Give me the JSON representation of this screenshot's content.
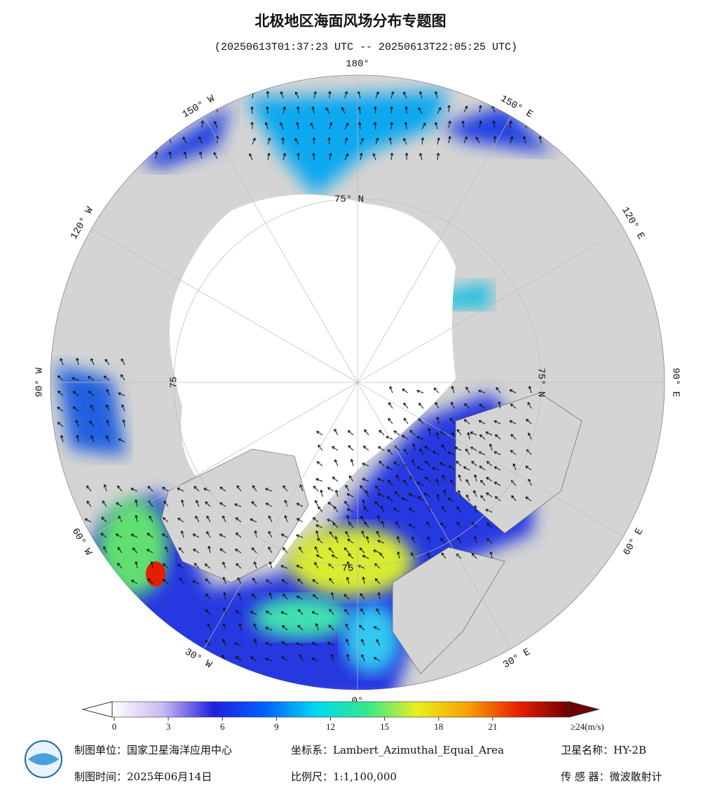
{
  "header": {
    "title": "北极地区海面风场分布专题图",
    "subtitle": "(20250613T01:37:23 UTC -- 20250613T22:05:25 UTC)"
  },
  "map": {
    "lon_labels": [
      "180°",
      "150° E",
      "120° E",
      "90° E",
      "60° E",
      "30° E",
      "0°",
      "30° W",
      "60° W",
      "90° W",
      "120° W",
      "150° W"
    ],
    "lat_labels": [
      "75° N",
      "75° N",
      "75",
      "75"
    ]
  },
  "colorbar": {
    "range": [
      0,
      24
    ],
    "ticks": [
      0,
      3,
      6,
      9,
      12,
      15,
      18,
      21
    ],
    "max_label": "≥24(m/s)",
    "colors": [
      "#ffffff",
      "#c8b8f0",
      "#2020e0",
      "#0060ff",
      "#00d8f0",
      "#30e890",
      "#e8f020",
      "#f8a000",
      "#e82000",
      "#700000"
    ]
  },
  "footer": {
    "unit": "制图单位：国家卫星海洋应用中心",
    "crs": "坐标系：Lambert_Azimuthal_Equal_Area",
    "satellite": "卫星名称：HY-2B",
    "date": "制图时间：2025年06月14日",
    "scale": "比例尺：1:1,100,000",
    "sensor": "传 感 器：微波散射计"
  }
}
